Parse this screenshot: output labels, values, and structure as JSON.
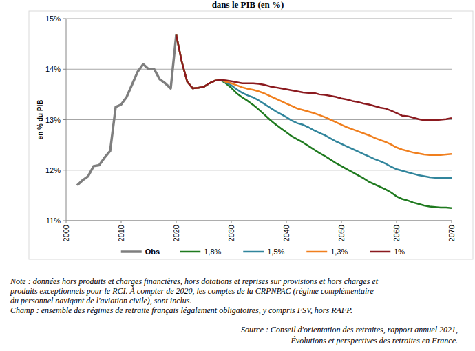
{
  "chart_data": {
    "type": "line",
    "title": "dans le PIB (en %)",
    "y_label": "en % du PIB",
    "x": [
      2002,
      2003,
      2004,
      2005,
      2006,
      2007,
      2008,
      2009,
      2010,
      2011,
      2012,
      2013,
      2014,
      2015,
      2016,
      2017,
      2018,
      2019,
      2020,
      2021,
      2022,
      2023,
      2024,
      2025,
      2026,
      2027,
      2028,
      2029,
      2030,
      2031,
      2032,
      2033,
      2034,
      2035,
      2036,
      2037,
      2038,
      2039,
      2040,
      2041,
      2042,
      2043,
      2044,
      2045,
      2046,
      2047,
      2048,
      2049,
      2050,
      2051,
      2052,
      2053,
      2054,
      2055,
      2056,
      2057,
      2058,
      2059,
      2060,
      2061,
      2062,
      2063,
      2064,
      2065,
      2066,
      2067,
      2068,
      2069,
      2070
    ],
    "series": [
      {
        "name": "Obs",
        "color": "#7f7f7f",
        "values": [
          11.7,
          11.8,
          11.88,
          12.08,
          12.1,
          12.25,
          12.38,
          13.25,
          13.3,
          13.45,
          13.7,
          13.95,
          14.1,
          14.0,
          14.0,
          13.8,
          13.72,
          13.62,
          14.68,
          null,
          null,
          null,
          null,
          null,
          null,
          null,
          null,
          null,
          null,
          null,
          null,
          null,
          null,
          null,
          null,
          null,
          null,
          null,
          null,
          null,
          null,
          null,
          null,
          null,
          null,
          null,
          null,
          null,
          null,
          null,
          null,
          null,
          null,
          null,
          null,
          null,
          null,
          null,
          null,
          null,
          null,
          null,
          null,
          null,
          null,
          null,
          null,
          null,
          null
        ]
      },
      {
        "name": "1,8%",
        "color": "#1f7a1f",
        "values": [
          null,
          null,
          null,
          null,
          null,
          null,
          null,
          null,
          null,
          null,
          null,
          null,
          null,
          null,
          null,
          null,
          null,
          null,
          14.68,
          14.15,
          13.75,
          13.62,
          13.63,
          13.65,
          13.72,
          13.77,
          13.79,
          13.72,
          13.63,
          13.52,
          13.44,
          13.37,
          13.29,
          13.2,
          13.1,
          13.0,
          12.91,
          12.83,
          12.75,
          12.67,
          12.61,
          12.55,
          12.48,
          12.41,
          12.34,
          12.28,
          12.21,
          12.14,
          12.08,
          12.02,
          11.96,
          11.9,
          11.84,
          11.77,
          11.72,
          11.67,
          11.62,
          11.56,
          11.48,
          11.43,
          11.4,
          11.36,
          11.33,
          11.3,
          11.28,
          11.27,
          11.26,
          11.26,
          11.25
        ]
      },
      {
        "name": "1,5%",
        "color": "#31859c",
        "values": [
          null,
          null,
          null,
          null,
          null,
          null,
          null,
          null,
          null,
          null,
          null,
          null,
          null,
          null,
          null,
          null,
          null,
          null,
          14.68,
          14.15,
          13.75,
          13.62,
          13.63,
          13.65,
          13.72,
          13.77,
          13.79,
          13.74,
          13.68,
          13.6,
          13.53,
          13.48,
          13.44,
          13.38,
          13.31,
          13.24,
          13.17,
          13.11,
          13.05,
          12.98,
          12.93,
          12.9,
          12.85,
          12.79,
          12.74,
          12.69,
          12.63,
          12.57,
          12.52,
          12.47,
          12.42,
          12.37,
          12.32,
          12.27,
          12.22,
          12.18,
          12.13,
          12.07,
          12.02,
          11.99,
          11.96,
          11.93,
          11.9,
          11.88,
          11.86,
          11.85,
          11.85,
          11.85,
          11.85
        ]
      },
      {
        "name": "1,3%",
        "color": "#f07f1e",
        "values": [
          null,
          null,
          null,
          null,
          null,
          null,
          null,
          null,
          null,
          null,
          null,
          null,
          null,
          null,
          null,
          null,
          null,
          null,
          14.68,
          14.15,
          13.75,
          13.62,
          13.63,
          13.65,
          13.72,
          13.77,
          13.79,
          13.75,
          13.72,
          13.68,
          13.64,
          13.61,
          13.59,
          13.56,
          13.52,
          13.47,
          13.42,
          13.37,
          13.32,
          13.27,
          13.22,
          13.19,
          13.16,
          13.13,
          13.09,
          13.05,
          13.0,
          12.95,
          12.9,
          12.85,
          12.81,
          12.77,
          12.73,
          12.69,
          12.64,
          12.6,
          12.56,
          12.51,
          12.45,
          12.41,
          12.38,
          12.35,
          12.33,
          12.31,
          12.3,
          12.3,
          12.3,
          12.31,
          12.32
        ]
      },
      {
        "name": "1%",
        "color": "#8b1a1f",
        "values": [
          null,
          null,
          null,
          null,
          null,
          null,
          null,
          null,
          null,
          null,
          null,
          null,
          null,
          null,
          null,
          null,
          null,
          null,
          14.68,
          14.15,
          13.75,
          13.62,
          13.63,
          13.65,
          13.72,
          13.77,
          13.79,
          13.78,
          13.76,
          13.74,
          13.72,
          13.72,
          13.72,
          13.71,
          13.69,
          13.66,
          13.64,
          13.62,
          13.6,
          13.58,
          13.56,
          13.54,
          13.53,
          13.53,
          13.5,
          13.49,
          13.47,
          13.45,
          13.42,
          13.4,
          13.37,
          13.35,
          13.32,
          13.3,
          13.27,
          13.24,
          13.22,
          13.18,
          13.13,
          13.08,
          13.07,
          13.04,
          13.01,
          12.99,
          12.99,
          12.99,
          13.0,
          13.01,
          13.03
        ]
      }
    ],
    "xlim": [
      2000,
      2070
    ],
    "xticks": [
      2000,
      2010,
      2020,
      2030,
      2040,
      2050,
      2060,
      2070
    ],
    "ylim": [
      11,
      15
    ],
    "yticks": [
      {
        "value": 11,
        "label": "11%"
      },
      {
        "value": 12,
        "label": "12%"
      },
      {
        "value": 13,
        "label": "13%"
      },
      {
        "value": 14,
        "label": "14%"
      },
      {
        "value": 15,
        "label": "15%"
      }
    ],
    "grid": true,
    "legend": "bottom",
    "notes": [
      "Note : données hors produits et charges financières, hors dotations et reprises sur provisions et hors charges et",
      "produits exceptionnels pour le RCI. À compter de 2020, les comptes de la CRPNPAC (régime complémentaire",
      "du personnel navigant de l'aviation civile), sont inclus.",
      "Champ : ensemble des régimes de retraite français légalement obligatoires, y compris FSV, hors RAFP."
    ],
    "source": [
      "Source : Conseil d'orientation  des retraites, rapport annuel 2021,",
      "Évolutions et perspectives  des retraites  en France."
    ]
  }
}
